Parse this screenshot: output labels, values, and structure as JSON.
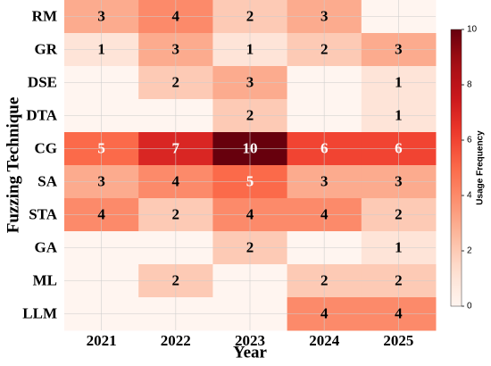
{
  "chart_data": {
    "type": "heatmap",
    "x_label": "Year",
    "y_label": "Fuzzing Technique",
    "x_categories": [
      "2021",
      "2022",
      "2023",
      "2024",
      "2025"
    ],
    "y_categories": [
      "RM",
      "GR",
      "DSE",
      "DTA",
      "CG",
      "SA",
      "STA",
      "GA",
      "ML",
      "LLM"
    ],
    "values": [
      [
        3,
        4,
        2,
        3,
        null
      ],
      [
        1,
        3,
        1,
        2,
        3
      ],
      [
        null,
        2,
        3,
        null,
        1
      ],
      [
        null,
        null,
        2,
        null,
        1
      ],
      [
        5,
        7,
        10,
        6,
        6
      ],
      [
        3,
        4,
        5,
        3,
        3
      ],
      [
        4,
        2,
        4,
        4,
        2
      ],
      [
        null,
        null,
        2,
        null,
        1
      ],
      [
        null,
        2,
        null,
        2,
        2
      ],
      [
        null,
        null,
        null,
        4,
        4
      ]
    ],
    "colormap": "Reds",
    "colorbar_label": "Usage Frequency",
    "clim": [
      0,
      10
    ],
    "colorbar_ticks": [
      0,
      2,
      4,
      6,
      8,
      10
    ]
  }
}
